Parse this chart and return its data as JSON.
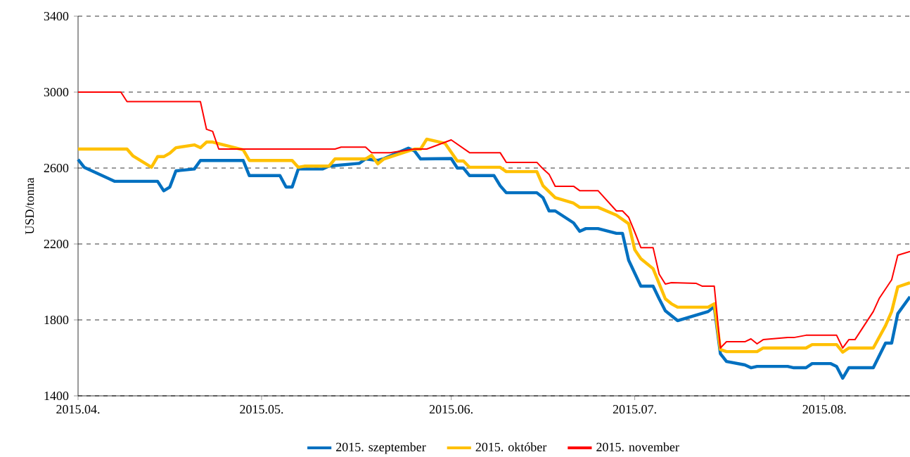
{
  "chart_data": {
    "type": "line",
    "ylabel": "USD/tonna",
    "xlim": [
      "2015-04-01",
      "2015-08-15"
    ],
    "xticks": [
      {
        "value": "2015-04-01",
        "label": "2015.04."
      },
      {
        "value": "2015-05-01",
        "label": "2015.05."
      },
      {
        "value": "2015-06-01",
        "label": "2015.06."
      },
      {
        "value": "2015-07-01",
        "label": "2015.07."
      },
      {
        "value": "2015-08-01",
        "label": "2015.08."
      }
    ],
    "ylim": [
      1400,
      3400
    ],
    "yticks": [
      1400,
      1800,
      2200,
      2600,
      3000,
      3400
    ],
    "grid": "y",
    "legend": "bottom",
    "marker": "none",
    "line_style": "solid",
    "series": [
      {
        "name": "2015. szeptember",
        "color": "#0070c0",
        "x": [
          "2015-04-01",
          "2015-04-02",
          "2015-04-07",
          "2015-04-14",
          "2015-04-15",
          "2015-04-16",
          "2015-04-17",
          "2015-04-20",
          "2015-04-21",
          "2015-04-28",
          "2015-04-29",
          "2015-05-04",
          "2015-05-05",
          "2015-05-06",
          "2015-05-07",
          "2015-05-11",
          "2015-05-12",
          "2015-05-17",
          "2015-05-18",
          "2015-05-20",
          "2015-05-21",
          "2015-05-25",
          "2015-05-26",
          "2015-05-27",
          "2015-06-01",
          "2015-06-02",
          "2015-06-03",
          "2015-06-04",
          "2015-06-08",
          "2015-06-09",
          "2015-06-10",
          "2015-06-15",
          "2015-06-16",
          "2015-06-17",
          "2015-06-18",
          "2015-06-21",
          "2015-06-22",
          "2015-06-23",
          "2015-06-25",
          "2015-06-28",
          "2015-06-29",
          "2015-06-30",
          "2015-07-02",
          "2015-07-04",
          "2015-07-05",
          "2015-07-06",
          "2015-07-08",
          "2015-07-13",
          "2015-07-14",
          "2015-07-15",
          "2015-07-16",
          "2015-07-19",
          "2015-07-20",
          "2015-07-21",
          "2015-07-26",
          "2015-07-27",
          "2015-07-29",
          "2015-07-30",
          "2015-08-02",
          "2015-08-03",
          "2015-08-04",
          "2015-08-05",
          "2015-08-09",
          "2015-08-11",
          "2015-08-12",
          "2015-08-13",
          "2015-08-15"
        ],
        "values": [
          2645,
          2604,
          2530,
          2530,
          2480,
          2500,
          2585,
          2595,
          2640,
          2640,
          2560,
          2560,
          2500,
          2500,
          2595,
          2595,
          2610,
          2625,
          2648,
          2640,
          2650,
          2705,
          2690,
          2648,
          2650,
          2600,
          2600,
          2560,
          2560,
          2507,
          2470,
          2470,
          2444,
          2374,
          2374,
          2311,
          2267,
          2281,
          2281,
          2256,
          2256,
          2115,
          1978,
          1978,
          1911,
          1848,
          1796,
          1844,
          1870,
          1622,
          1581,
          1563,
          1548,
          1555,
          1555,
          1548,
          1548,
          1570,
          1570,
          1555,
          1493,
          1548,
          1548,
          1678,
          1678,
          1833,
          1922
        ]
      },
      {
        "name": "2015. október",
        "color": "#ffc000",
        "x": [
          "2015-04-01",
          "2015-04-09",
          "2015-04-10",
          "2015-04-13",
          "2015-04-14",
          "2015-04-15",
          "2015-04-16",
          "2015-04-17",
          "2015-04-20",
          "2015-04-21",
          "2015-04-22",
          "2015-04-23",
          "2015-04-28",
          "2015-04-29",
          "2015-05-06",
          "2015-05-07",
          "2015-05-08",
          "2015-05-12",
          "2015-05-13",
          "2015-05-18",
          "2015-05-19",
          "2015-05-20",
          "2015-05-21",
          "2015-05-26",
          "2015-05-27",
          "2015-05-28",
          "2015-05-31",
          "2015-06-02",
          "2015-06-03",
          "2015-06-04",
          "2015-06-09",
          "2015-06-10",
          "2015-06-15",
          "2015-06-16",
          "2015-06-18",
          "2015-06-21",
          "2015-06-22",
          "2015-06-25",
          "2015-06-28",
          "2015-06-30",
          "2015-07-01",
          "2015-07-02",
          "2015-07-04",
          "2015-07-06",
          "2015-07-07",
          "2015-07-08",
          "2015-07-13",
          "2015-07-14",
          "2015-07-15",
          "2015-07-16",
          "2015-07-21",
          "2015-07-22",
          "2015-07-29",
          "2015-07-30",
          "2015-08-03",
          "2015-08-04",
          "2015-08-05",
          "2015-08-09",
          "2015-08-11",
          "2015-08-12",
          "2015-08-13",
          "2015-08-15"
        ],
        "values": [
          2700,
          2700,
          2663,
          2604,
          2660,
          2660,
          2678,
          2707,
          2722,
          2707,
          2737,
          2737,
          2696,
          2640,
          2640,
          2604,
          2610,
          2610,
          2648,
          2648,
          2667,
          2622,
          2648,
          2700,
          2700,
          2752,
          2730,
          2637,
          2637,
          2604,
          2604,
          2581,
          2581,
          2507,
          2444,
          2415,
          2393,
          2393,
          2352,
          2307,
          2170,
          2122,
          2070,
          1911,
          1885,
          1867,
          1867,
          1885,
          1644,
          1633,
          1633,
          1652,
          1652,
          1670,
          1670,
          1630,
          1652,
          1652,
          1770,
          1844,
          1974,
          1996
        ]
      },
      {
        "name": "2015. november",
        "color": "#ff0000",
        "x": [
          "2015-04-01",
          "2015-04-08",
          "2015-04-09",
          "2015-04-21",
          "2015-04-22",
          "2015-04-23",
          "2015-04-24",
          "2015-05-13",
          "2015-05-14",
          "2015-05-18",
          "2015-05-19",
          "2015-05-22",
          "2015-05-26",
          "2015-05-28",
          "2015-06-01",
          "2015-06-04",
          "2015-06-09",
          "2015-06-10",
          "2015-06-15",
          "2015-06-16",
          "2015-06-17",
          "2015-06-18",
          "2015-06-21",
          "2015-06-22",
          "2015-06-25",
          "2015-06-28",
          "2015-06-29",
          "2015-06-30",
          "2015-07-01",
          "2015-07-02",
          "2015-07-04",
          "2015-07-05",
          "2015-07-06",
          "2015-07-07",
          "2015-07-11",
          "2015-07-12",
          "2015-07-14",
          "2015-07-15",
          "2015-07-16",
          "2015-07-19",
          "2015-07-20",
          "2015-07-21",
          "2015-07-22",
          "2015-07-26",
          "2015-07-27",
          "2015-07-29",
          "2015-08-03",
          "2015-08-04",
          "2015-08-05",
          "2015-08-06",
          "2015-08-09",
          "2015-08-10",
          "2015-08-12",
          "2015-08-13",
          "2015-08-15"
        ],
        "values": [
          3000,
          3000,
          2950,
          2950,
          2804,
          2793,
          2700,
          2700,
          2710,
          2710,
          2681,
          2681,
          2700,
          2700,
          2748,
          2681,
          2681,
          2630,
          2630,
          2596,
          2567,
          2504,
          2504,
          2481,
          2481,
          2374,
          2374,
          2341,
          2263,
          2181,
          2181,
          2041,
          1989,
          1996,
          1993,
          1978,
          1978,
          1652,
          1685,
          1685,
          1700,
          1674,
          1696,
          1707,
          1707,
          1719,
          1719,
          1652,
          1696,
          1696,
          1844,
          1915,
          2011,
          2141,
          2160
        ]
      }
    ]
  }
}
